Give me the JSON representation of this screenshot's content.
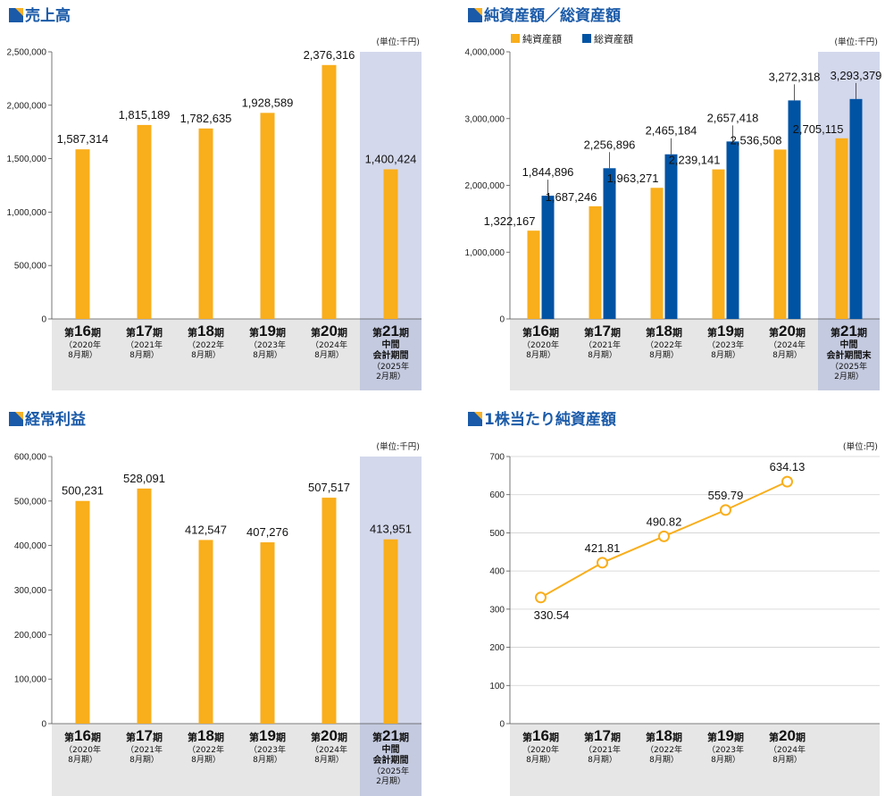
{
  "colors": {
    "orange": "#f9ae1b",
    "blue": "#0053a3",
    "title": "#1a5aa8",
    "band": "#e6e6e6",
    "highlight": "#d3d8ec",
    "grid": "#d0d0d0",
    "icon": "#f6b12a"
  },
  "chart_data": [
    {
      "type": "bar",
      "title": "売上高",
      "unit": "(単位:千円)",
      "ylim": [
        0,
        2500000
      ],
      "yticks": [
        0,
        500000,
        1000000,
        1500000,
        2000000,
        2500000
      ],
      "ytick_labels": [
        "0",
        "500,000",
        "1,000,000",
        "1,500,000",
        "2,000,000",
        "2,500,000"
      ],
      "series": [
        {
          "values": [
            1587314,
            1815189,
            1782635,
            1928589,
            2376316,
            1400424
          ],
          "labels": [
            "1,587,314",
            "1,815,189",
            "1,782,635",
            "1,928,589",
            "2,376,316",
            "1,400,424"
          ]
        }
      ],
      "categories": [
        {
          "pre": "第",
          "num": "16",
          "post": "期",
          "sub": [
            "（2020年",
            "8月期）"
          ]
        },
        {
          "pre": "第",
          "num": "17",
          "post": "期",
          "sub": [
            "（2021年",
            "8月期）"
          ]
        },
        {
          "pre": "第",
          "num": "18",
          "post": "期",
          "sub": [
            "（2022年",
            "8月期）"
          ]
        },
        {
          "pre": "第",
          "num": "19",
          "post": "期",
          "sub": [
            "（2023年",
            "8月期）"
          ]
        },
        {
          "pre": "第",
          "num": "20",
          "post": "期",
          "sub": [
            "（2024年",
            "8月期）"
          ]
        },
        {
          "pre": "第",
          "num": "21",
          "post": "期",
          "bold": [
            "中間",
            "会計期間"
          ],
          "sub": [
            "（2025年",
            "2月期）"
          ]
        }
      ],
      "grid": false
    },
    {
      "type": "bar",
      "title": "純資産額／総資産額",
      "unit": "(単位:千円)",
      "ylim": [
        0,
        4000000
      ],
      "yticks": [
        0,
        1000000,
        2000000,
        3000000,
        4000000
      ],
      "ytick_labels": [
        "0",
        "1,000,000",
        "2,000,000",
        "3,000,000",
        "4,000,000"
      ],
      "legend_position": "top-left",
      "series": [
        {
          "name": "純資産額",
          "values": [
            1322167,
            1687246,
            1963271,
            2239141,
            2536508,
            2705115
          ],
          "labels": [
            "1,322,167",
            "1,687,246",
            "1,963,271",
            "2,239,141",
            "2,536,508",
            "2,705,115"
          ]
        },
        {
          "name": "総資産額",
          "values": [
            1844896,
            2256896,
            2465184,
            2657418,
            3272318,
            3293379
          ],
          "labels": [
            "1,844,896",
            "2,256,896",
            "2,465,184",
            "2,657,418",
            "3,272,318",
            "3,293,379"
          ]
        }
      ],
      "categories": [
        {
          "pre": "第",
          "num": "16",
          "post": "期",
          "sub": [
            "（2020年",
            "8月期）"
          ]
        },
        {
          "pre": "第",
          "num": "17",
          "post": "期",
          "sub": [
            "（2021年",
            "8月期）"
          ]
        },
        {
          "pre": "第",
          "num": "18",
          "post": "期",
          "sub": [
            "（2022年",
            "8月期）"
          ]
        },
        {
          "pre": "第",
          "num": "19",
          "post": "期",
          "sub": [
            "（2023年",
            "8月期）"
          ]
        },
        {
          "pre": "第",
          "num": "20",
          "post": "期",
          "sub": [
            "（2024年",
            "8月期）"
          ]
        },
        {
          "pre": "第",
          "num": "21",
          "post": "期",
          "bold": [
            "中間",
            "会計期間末"
          ],
          "sub": [
            "（2025年",
            "2月期）"
          ]
        }
      ],
      "grid": false
    },
    {
      "type": "bar",
      "title": "経常利益",
      "unit": "(単位:千円)",
      "ylim": [
        0,
        600000
      ],
      "yticks": [
        0,
        100000,
        200000,
        300000,
        400000,
        500000,
        600000
      ],
      "ytick_labels": [
        "0",
        "100,000",
        "200,000",
        "300,000",
        "400,000",
        "500,000",
        "600,000"
      ],
      "series": [
        {
          "values": [
            500231,
            528091,
            412547,
            407276,
            507517,
            413951
          ],
          "labels": [
            "500,231",
            "528,091",
            "412,547",
            "407,276",
            "507,517",
            "413,951"
          ]
        }
      ],
      "categories": [
        {
          "pre": "第",
          "num": "16",
          "post": "期",
          "sub": [
            "（2020年",
            "8月期）"
          ]
        },
        {
          "pre": "第",
          "num": "17",
          "post": "期",
          "sub": [
            "（2021年",
            "8月期）"
          ]
        },
        {
          "pre": "第",
          "num": "18",
          "post": "期",
          "sub": [
            "（2022年",
            "8月期）"
          ]
        },
        {
          "pre": "第",
          "num": "19",
          "post": "期",
          "sub": [
            "（2023年",
            "8月期）"
          ]
        },
        {
          "pre": "第",
          "num": "20",
          "post": "期",
          "sub": [
            "（2024年",
            "8月期）"
          ]
        },
        {
          "pre": "第",
          "num": "21",
          "post": "期",
          "bold": [
            "中間",
            "会計期間"
          ],
          "sub": [
            "（2025年",
            "2月期）"
          ]
        }
      ],
      "grid": false
    },
    {
      "type": "line",
      "title": "1株当たり純資産額",
      "unit": "(単位:円)",
      "ylim": [
        0,
        700
      ],
      "yticks": [
        0,
        100,
        200,
        300,
        400,
        500,
        600,
        700
      ],
      "ytick_labels": [
        "0",
        "100",
        "200",
        "300",
        "400",
        "500",
        "600",
        "700"
      ],
      "series": [
        {
          "values": [
            330.54,
            421.81,
            490.82,
            559.79,
            634.13
          ],
          "labels": [
            "330.54",
            "421.81",
            "490.82",
            "559.79",
            "634.13"
          ]
        }
      ],
      "categories": [
        {
          "pre": "第",
          "num": "16",
          "post": "期",
          "sub": [
            "（2020年",
            "8月期）"
          ]
        },
        {
          "pre": "第",
          "num": "17",
          "post": "期",
          "sub": [
            "（2021年",
            "8月期）"
          ]
        },
        {
          "pre": "第",
          "num": "18",
          "post": "期",
          "sub": [
            "（2022年",
            "8月期）"
          ]
        },
        {
          "pre": "第",
          "num": "19",
          "post": "期",
          "sub": [
            "（2023年",
            "8月期）"
          ]
        },
        {
          "pre": "第",
          "num": "20",
          "post": "期",
          "sub": [
            "（2024年",
            "8月期）"
          ]
        }
      ],
      "grid": true
    }
  ]
}
